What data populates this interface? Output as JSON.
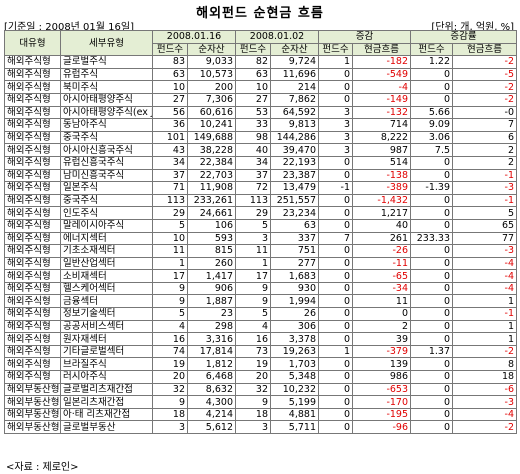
{
  "title": "해외펀드 순현금 흐름",
  "base_date": "[기준일 : 2008년 01월 16일]",
  "unit": "[단위: 개, 억원, %]",
  "headers": {
    "category": "대유형",
    "subtype": "세부유형",
    "date1": "2008.01.16",
    "date2": "2008.01.02",
    "change": "증감",
    "change_rate": "증감률",
    "fund_count": "펀드수",
    "net_assets": "순자산",
    "cash_flow": "현금흐름"
  },
  "rows": [
    [
      "해외주식형",
      "글로벌주식",
      "83",
      "9,033",
      "82",
      "9,724",
      "1",
      "-182",
      "1.22",
      "-2"
    ],
    [
      "해외주식형",
      "유럽주식",
      "63",
      "10,573",
      "63",
      "11,696",
      "0",
      "-549",
      "0",
      "-5"
    ],
    [
      "해외주식형",
      "북미주식",
      "10",
      "200",
      "10",
      "214",
      "0",
      "-4",
      "0",
      "-2"
    ],
    [
      "해외주식형",
      "아시아태평양주식",
      "27",
      "7,306",
      "27",
      "7,862",
      "0",
      "-149",
      "0",
      "-2"
    ],
    [
      "해외주식형",
      "아시아태평양주식(ex J)",
      "56",
      "60,616",
      "53",
      "64,592",
      "3",
      "-132",
      "5.66",
      "-0"
    ],
    [
      "해외주식형",
      "동남아주식",
      "36",
      "10,241",
      "33",
      "9,813",
      "3",
      "714",
      "9.09",
      "7"
    ],
    [
      "해외주식형",
      "중국주식",
      "101",
      "149,688",
      "98",
      "144,286",
      "3",
      "8,222",
      "3.06",
      "6"
    ],
    [
      "해외주식형",
      "아시아신흥국주식",
      "43",
      "38,228",
      "40",
      "39,470",
      "3",
      "987",
      "7.5",
      "2"
    ],
    [
      "해외주식형",
      "유럽신흥국주식",
      "34",
      "22,384",
      "34",
      "22,193",
      "0",
      "514",
      "0",
      "2"
    ],
    [
      "해외주식형",
      "남미신흥국주식",
      "37",
      "22,703",
      "37",
      "23,387",
      "0",
      "-138",
      "0",
      "-1"
    ],
    [
      "해외주식형",
      "일본주식",
      "71",
      "11,908",
      "72",
      "13,479",
      "-1",
      "-389",
      "-1.39",
      "-3"
    ],
    [
      "해외주식형",
      "중국주식",
      "113",
      "233,261",
      "113",
      "251,557",
      "0",
      "-1,432",
      "0",
      "-1"
    ],
    [
      "해외주식형",
      "인도주식",
      "29",
      "24,661",
      "29",
      "23,234",
      "0",
      "1,217",
      "0",
      "5"
    ],
    [
      "해외주식형",
      "말레이시아주식",
      "5",
      "106",
      "5",
      "63",
      "0",
      "40",
      "0",
      "65"
    ],
    [
      "해외주식형",
      "에너지섹터",
      "10",
      "593",
      "3",
      "337",
      "7",
      "261",
      "233.33",
      "77"
    ],
    [
      "해외주식형",
      "기초소재섹터",
      "11",
      "815",
      "11",
      "751",
      "0",
      "-26",
      "0",
      "-3"
    ],
    [
      "해외주식형",
      "일반산업섹터",
      "1",
      "260",
      "1",
      "277",
      "0",
      "-11",
      "0",
      "-4"
    ],
    [
      "해외주식형",
      "소비재섹터",
      "17",
      "1,417",
      "17",
      "1,683",
      "0",
      "-65",
      "0",
      "-4"
    ],
    [
      "해외주식형",
      "헬스케어섹터",
      "9",
      "906",
      "9",
      "930",
      "0",
      "-34",
      "0",
      "-4"
    ],
    [
      "해외주식형",
      "금융섹터",
      "9",
      "1,887",
      "9",
      "1,994",
      "0",
      "11",
      "0",
      "1"
    ],
    [
      "해외주식형",
      "정보기술섹터",
      "5",
      "23",
      "5",
      "26",
      "0",
      "0",
      "0",
      "-1"
    ],
    [
      "해외주식형",
      "공공서비스섹터",
      "4",
      "298",
      "4",
      "306",
      "0",
      "2",
      "0",
      "1"
    ],
    [
      "해외주식형",
      "원자재섹터",
      "16",
      "3,316",
      "16",
      "3,378",
      "0",
      "39",
      "0",
      "1"
    ],
    [
      "해외주식형",
      "기타글로벌섹터",
      "74",
      "17,814",
      "73",
      "19,263",
      "1",
      "-379",
      "1.37",
      "-2"
    ],
    [
      "해외주식형",
      "브라질주식",
      "19",
      "1,812",
      "19",
      "1,703",
      "0",
      "139",
      "0",
      "8"
    ],
    [
      "해외주식형",
      "러시아주식",
      "20",
      "6,468",
      "20",
      "5,348",
      "0",
      "986",
      "0",
      "18"
    ],
    [
      "해외부동산형",
      "글로벌리츠재간접",
      "32",
      "8,632",
      "32",
      "10,232",
      "0",
      "-653",
      "0",
      "-6"
    ],
    [
      "해외부동산형",
      "일본리츠재간접",
      "9",
      "4,300",
      "9",
      "5,199",
      "0",
      "-170",
      "0",
      "-3"
    ],
    [
      "해외부동산형",
      "아·태 리츠재간접",
      "18",
      "4,214",
      "18",
      "4,881",
      "0",
      "-195",
      "0",
      "-4"
    ],
    [
      "해외부동산형",
      "글로벌부동산",
      "3",
      "5,612",
      "3",
      "5,711",
      "0",
      "-96",
      "0",
      "-2"
    ]
  ],
  "source": "<자료 : 제로인>"
}
